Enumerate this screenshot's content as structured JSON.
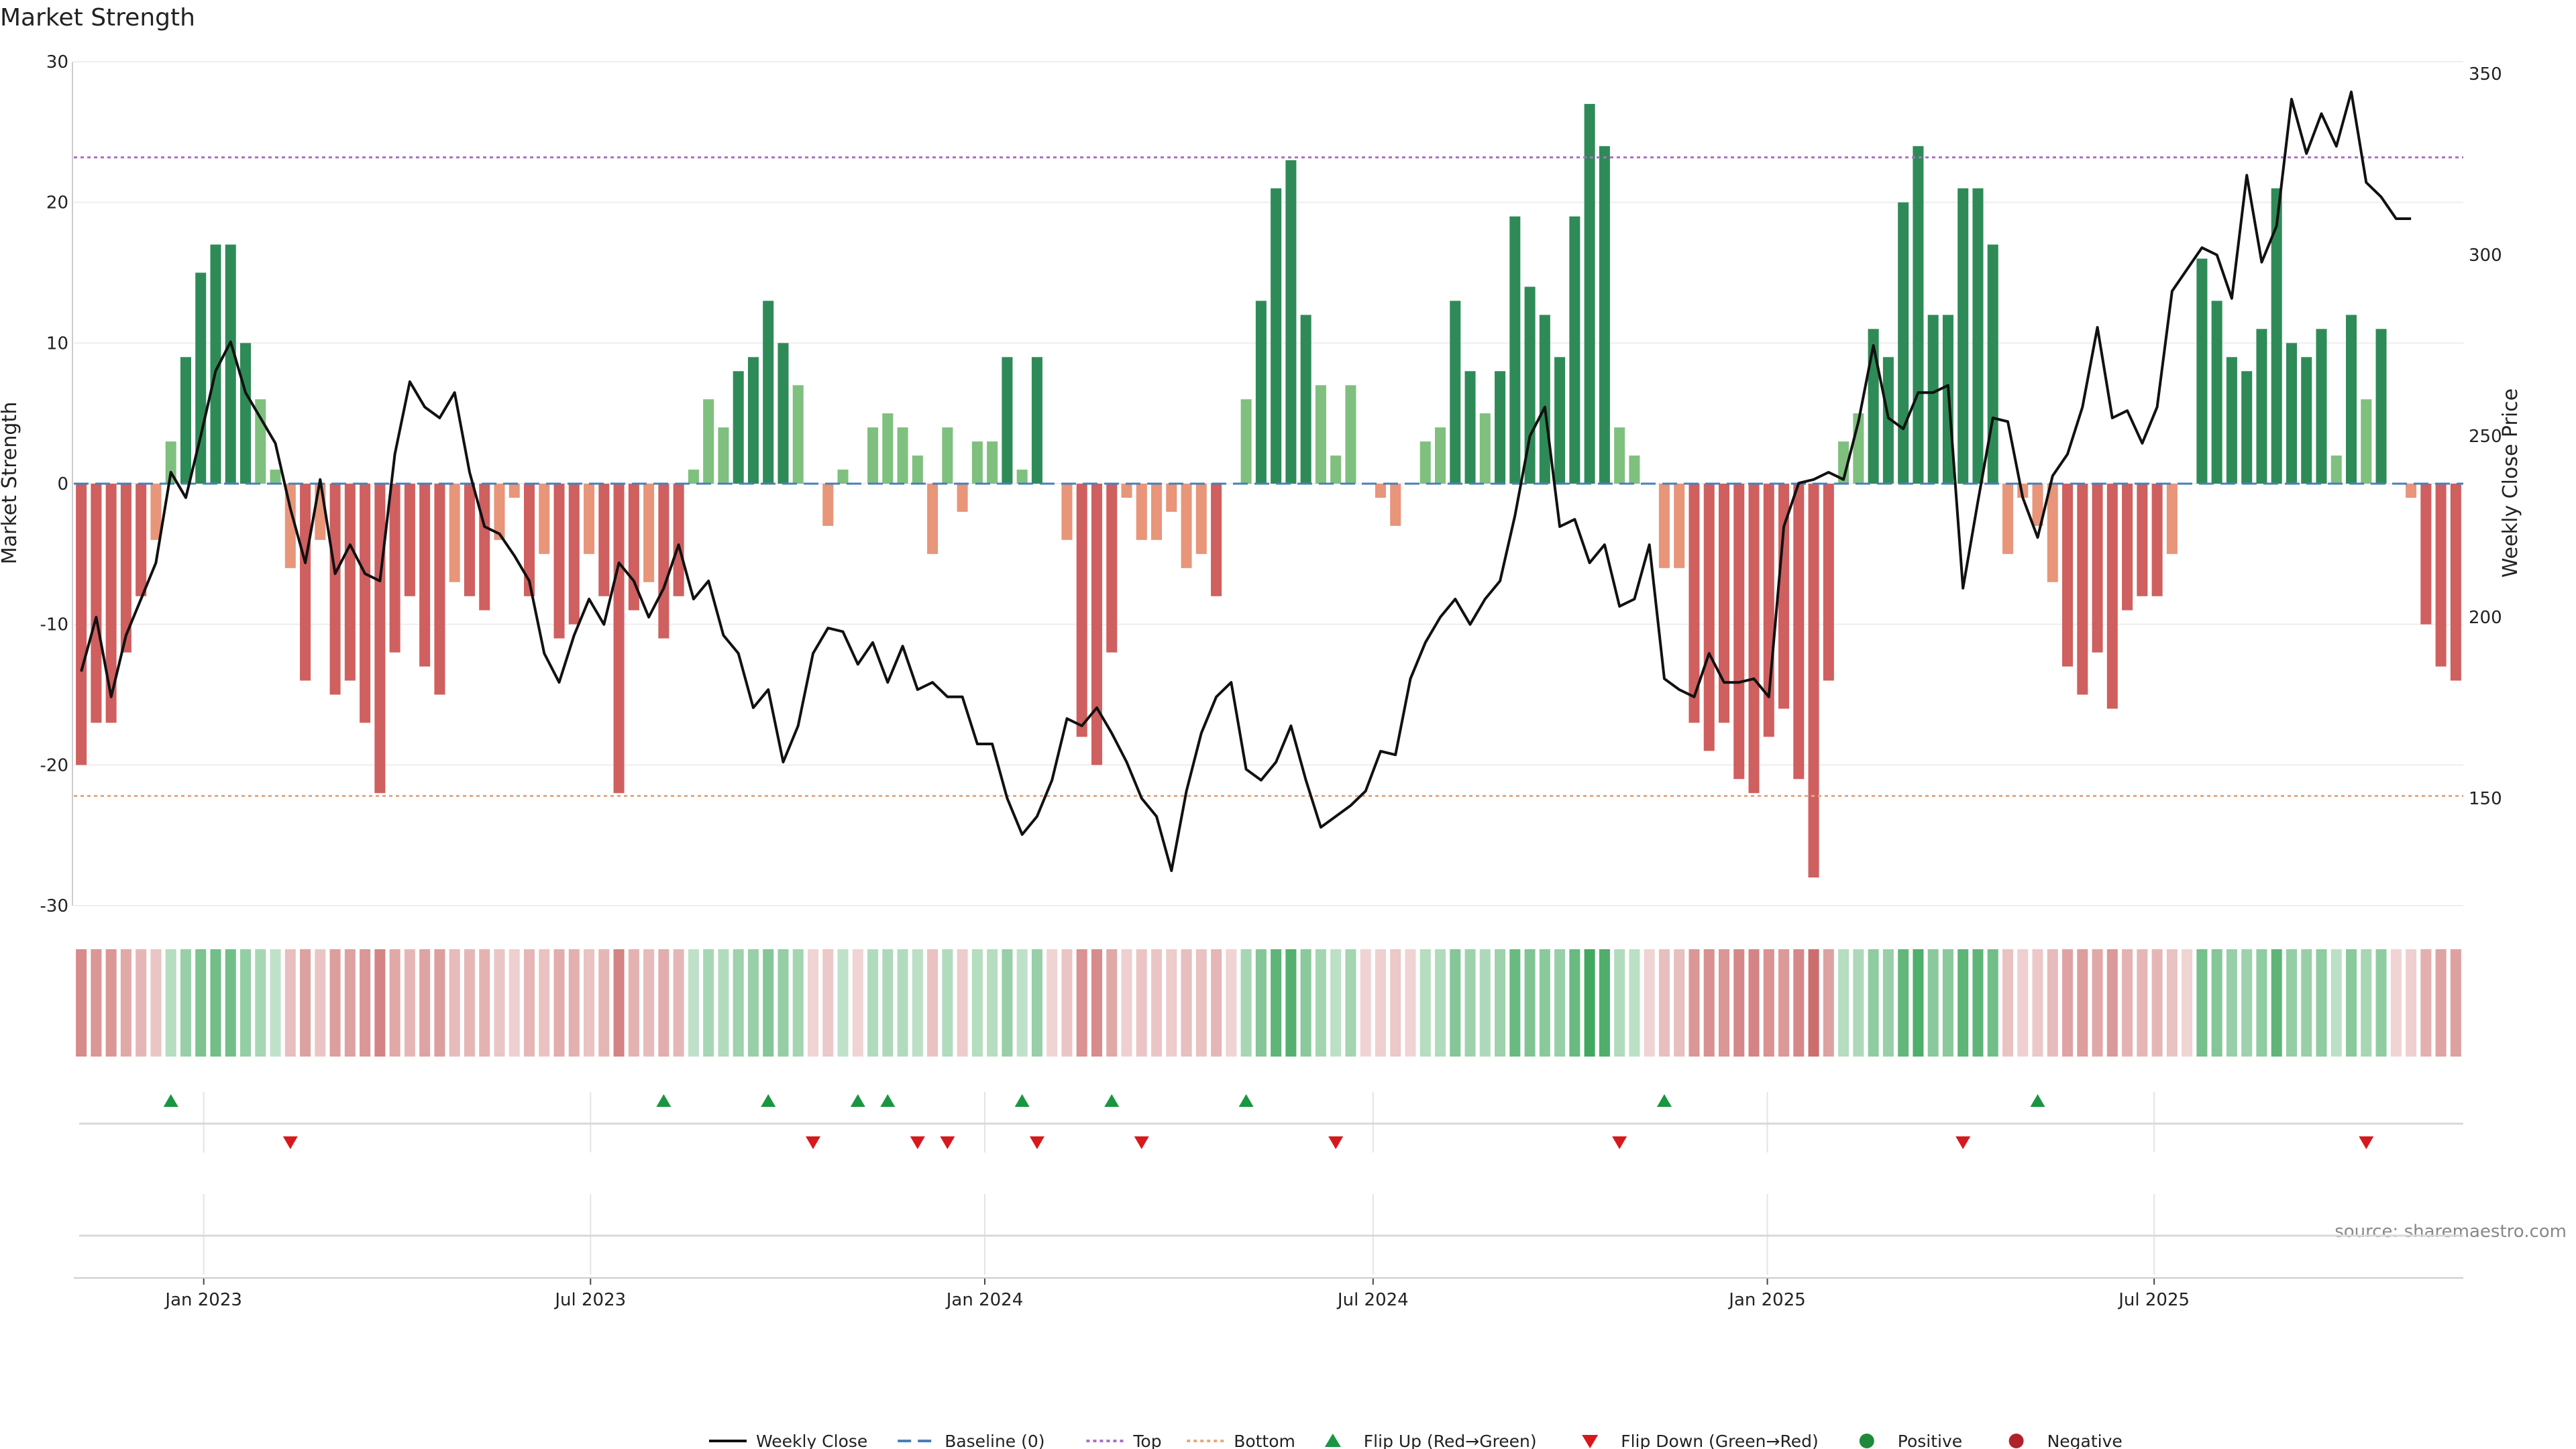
{
  "chart_data": {
    "type": "bar",
    "title": "Market Strength",
    "ylabel_left": "Market Strength",
    "ylabel_right": "Weekly Close Price",
    "left_ylim": [
      -30,
      30
    ],
    "left_ticks": [
      30,
      20,
      10,
      0,
      -10,
      -20,
      -30
    ],
    "right_ticks": [
      350,
      300,
      250,
      200,
      150
    ],
    "top_line": 23.2,
    "bottom_line": -22.2,
    "x_tick_labels": [
      "Jan 2023",
      "Jul 2023",
      "Jan 2024",
      "Jul 2024",
      "Jan 2025",
      "Jul 2025"
    ],
    "x_tick_weeks": [
      8.7,
      34.6,
      61,
      87,
      113.4,
      139.3
    ],
    "strength": [
      -20,
      -17,
      -17,
      -12,
      -8,
      -4,
      3,
      9,
      15,
      17,
      17,
      10,
      6,
      1,
      -6,
      -14,
      -4,
      -15,
      -14,
      -17,
      -22,
      -12,
      -8,
      -13,
      -15,
      -7,
      -8,
      -9,
      -4,
      -1,
      -8,
      -5,
      -11,
      -10,
      -5,
      -8,
      -22,
      -9,
      -7,
      -11,
      -8,
      1,
      6,
      4,
      8,
      9,
      13,
      10,
      7,
      0,
      -3,
      1,
      0,
      4,
      5,
      4,
      2,
      -5,
      4,
      -2,
      3,
      3,
      9,
      1,
      9,
      0,
      -4,
      -18,
      -20,
      -12,
      -1,
      -4,
      -4,
      -2,
      -6,
      -5,
      -8,
      0,
      6,
      13,
      21,
      23,
      12,
      7,
      2,
      7,
      0,
      -1,
      -3,
      0,
      3,
      4,
      13,
      8,
      5,
      8,
      19,
      14,
      12,
      9,
      19,
      27,
      24,
      4,
      2,
      0,
      -6,
      -6,
      -17,
      -19,
      -17,
      -21,
      -22,
      -18,
      -16,
      -21,
      -28,
      -14,
      3,
      5,
      11,
      9,
      20,
      24,
      12,
      12,
      21,
      21,
      17,
      -5,
      -1,
      -3,
      -7,
      -13,
      -15,
      -12,
      -16,
      -9,
      -8,
      -8,
      -5,
      0,
      16,
      13,
      9,
      8,
      11,
      21,
      10,
      9,
      11,
      2,
      12,
      6,
      11,
      0,
      -1,
      -10,
      -13,
      -14
    ],
    "weekly_close": [
      185,
      200,
      178,
      195,
      205,
      215,
      240,
      233,
      250,
      268,
      276,
      262,
      255,
      248,
      230,
      215,
      238,
      212,
      220,
      212,
      210,
      245,
      265,
      258,
      255,
      262,
      240,
      225,
      223,
      217,
      210,
      190,
      182,
      195,
      205,
      198,
      215,
      210,
      200,
      208,
      220,
      205,
      210,
      195,
      190,
      175,
      180,
      160,
      170,
      190,
      197,
      196,
      187,
      193,
      182,
      192,
      180,
      182,
      178,
      178,
      165,
      165,
      150,
      140,
      145,
      155,
      172,
      170,
      175,
      168,
      160,
      150,
      145,
      130,
      152,
      168,
      178,
      182,
      158,
      155,
      160,
      170,
      155,
      142,
      145,
      148,
      152,
      163,
      162,
      183,
      193,
      200,
      205,
      198,
      205,
      210,
      228,
      250,
      258,
      225,
      227,
      215,
      220,
      203,
      205,
      220,
      183,
      180,
      178,
      190,
      182,
      182,
      183,
      178,
      225,
      237,
      238,
      240,
      238,
      254,
      275,
      255,
      252,
      262,
      262,
      264,
      208,
      232,
      255,
      254,
      233,
      222,
      239,
      245,
      258,
      280,
      255,
      257,
      248,
      258,
      290,
      296,
      302,
      300,
      288,
      322,
      298,
      308,
      343,
      328,
      339,
      330,
      345,
      320,
      316,
      310,
      310
    ],
    "flip_up_weeks": [
      6,
      39,
      46,
      52,
      54,
      63,
      69,
      78,
      106,
      131
    ],
    "flip_down_weeks": [
      14,
      49,
      56,
      58,
      64,
      71,
      84,
      103,
      126,
      153
    ],
    "legend": [
      {
        "label": "Weekly Close",
        "marker": "line",
        "color": "#111111"
      },
      {
        "label": "Baseline (0)",
        "marker": "dash",
        "color": "#4a7fb5"
      },
      {
        "label": "Top",
        "marker": "dot-purple",
        "color": "#a970c6"
      },
      {
        "label": "Bottom",
        "marker": "dot-orange",
        "color": "#e8a87c"
      },
      {
        "label": "Flip Up (Red→Green)",
        "marker": "tri-up",
        "color": "#1a9641"
      },
      {
        "label": "Flip Down (Green→Red)",
        "marker": "tri-down",
        "color": "#d7191c"
      },
      {
        "label": "Positive",
        "marker": "circle",
        "color": "#1f8a3a"
      },
      {
        "label": "Negative",
        "marker": "circle",
        "color": "#b0222a"
      }
    ],
    "source": "source: sharemaestro.com",
    "colors": {
      "pos_strong": "#2e8b57",
      "pos_weak": "#7fc07f",
      "neg_strong": "#d05f5f",
      "neg_weak": "#e8957a",
      "top_line": "#a970c6",
      "bottom_line": "#e8a87c",
      "baseline": "#4a7fb5",
      "close_line": "#111111"
    }
  }
}
